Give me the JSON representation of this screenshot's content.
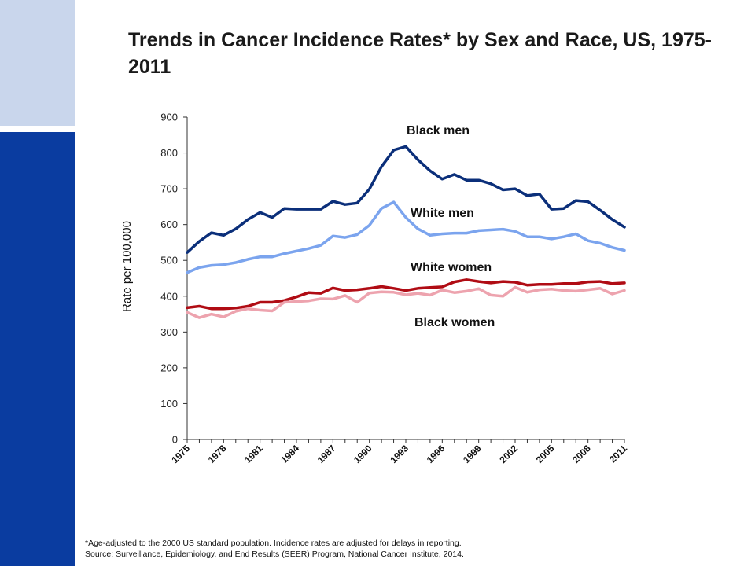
{
  "title": "Trends in Cancer Incidence Rates* by Sex and Race, US, 1975-2011",
  "footnote": {
    "line1": "*Age-adjusted to the 2000 US standard population. Incidence rates are adjusted for delays in reporting.",
    "line2": "Source: Surveillance, Epidemiology, and End Results (SEER) Program, National Cancer Institute, 2014."
  },
  "chart_data": {
    "type": "line",
    "ylabel": "Rate per 100,000",
    "xlabel": "",
    "ylim": [
      0,
      900
    ],
    "yticks": [
      0,
      100,
      200,
      300,
      400,
      500,
      600,
      700,
      800,
      900
    ],
    "xticks": [
      "1975",
      "1978",
      "1981",
      "1984",
      "1987",
      "1990",
      "1993",
      "1996",
      "1999",
      "2002",
      "2005",
      "2008",
      "2011"
    ],
    "grid": false,
    "x": [
      1975,
      1976,
      1977,
      1978,
      1979,
      1980,
      1981,
      1982,
      1983,
      1984,
      1985,
      1986,
      1987,
      1988,
      1989,
      1990,
      1991,
      1992,
      1993,
      1994,
      1995,
      1996,
      1997,
      1998,
      1999,
      2000,
      2001,
      2002,
      2003,
      2004,
      2005,
      2006,
      2007,
      2008,
      2009,
      2010,
      2011
    ],
    "series": [
      {
        "name": "Black men",
        "color": "#0b2f7a",
        "values": [
          522,
          553,
          577,
          570,
          588,
          614,
          634,
          620,
          645,
          643,
          643,
          643,
          665,
          656,
          660,
          699,
          762,
          808,
          818,
          781,
          750,
          727,
          740,
          724,
          724,
          714,
          697,
          700,
          681,
          685,
          643,
          645,
          667,
          664,
          640,
          614,
          593
        ]
      },
      {
        "name": "White men",
        "color": "#7ba4ee",
        "values": [
          466,
          480,
          486,
          488,
          494,
          503,
          510,
          510,
          519,
          526,
          533,
          542,
          568,
          564,
          572,
          598,
          645,
          663,
          620,
          588,
          570,
          574,
          576,
          576,
          583,
          585,
          587,
          581,
          566,
          566,
          560,
          566,
          574,
          555,
          548,
          536,
          528
        ]
      },
      {
        "name": "White women",
        "color": "#b00c14",
        "values": [
          368,
          372,
          365,
          365,
          367,
          372,
          383,
          383,
          388,
          398,
          410,
          408,
          423,
          416,
          418,
          422,
          427,
          422,
          416,
          422,
          424,
          426,
          440,
          446,
          441,
          437,
          441,
          439,
          431,
          433,
          433,
          435,
          435,
          440,
          441,
          435,
          437
        ]
      },
      {
        "name": "Black women",
        "color": "#eda3ae",
        "values": [
          355,
          340,
          350,
          342,
          358,
          365,
          361,
          359,
          383,
          385,
          387,
          393,
          392,
          402,
          383,
          409,
          412,
          411,
          404,
          408,
          403,
          417,
          410,
          414,
          421,
          403,
          400,
          425,
          411,
          418,
          420,
          416,
          414,
          418,
          422,
          406,
          416
        ]
      }
    ]
  }
}
